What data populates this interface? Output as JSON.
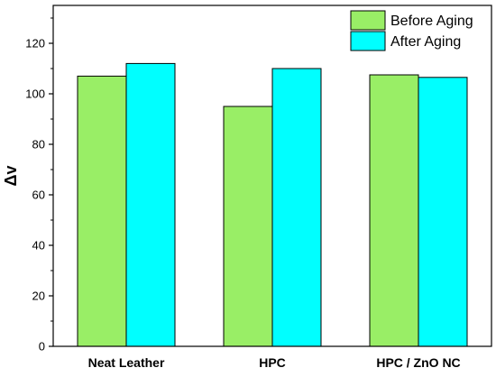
{
  "chart_data": {
    "type": "bar",
    "title": "",
    "xlabel": "",
    "ylabel": "Δv",
    "categories": [
      "Neat Leather",
      "HPC",
      "HPC / ZnO NC"
    ],
    "series": [
      {
        "name": "Before Aging",
        "values": [
          107,
          95,
          107.5
        ],
        "color": "#99ee66"
      },
      {
        "name": "After Aging",
        "values": [
          112,
          110,
          106.5
        ],
        "color": "#00ffff"
      }
    ],
    "ylim": [
      0,
      135
    ],
    "yticks": [
      0,
      20,
      40,
      60,
      80,
      100,
      120
    ],
    "grid": false,
    "legend_position": "top-right"
  }
}
